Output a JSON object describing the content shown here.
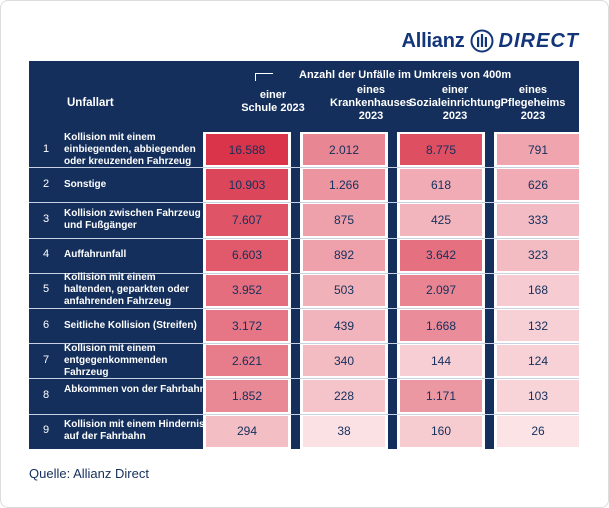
{
  "brand": {
    "word1": "Allianz",
    "word2": "DIRECT"
  },
  "source": "Quelle: Allianz Direct",
  "colors": {
    "panel": "#142f5c",
    "scale_low": "#fbe3e6",
    "scale_high": "#d9344a",
    "text_dark": "#142f5c"
  },
  "chart_data": {
    "type": "table",
    "title": "",
    "group_header": "Anzahl der Unfälle im Umkreis von 400m",
    "row_header": "Unfallart",
    "columns": [
      {
        "label": "einer\nSchule 2023",
        "line1": "einer",
        "line2": "Schule 2023",
        "line3": ""
      },
      {
        "label": "eines\nKrankenhauses\n2023",
        "line1": "eines",
        "line2": "Krankenhauses",
        "line3": "2023"
      },
      {
        "label": "einer\nSozialeinrichtung\n2023",
        "line1": "einer",
        "line2": "Sozialeinrichtung",
        "line3": "2023"
      },
      {
        "label": "eines\nPflegeheims\n2023",
        "line1": "eines",
        "line2": "Pflegeheims",
        "line3": "2023"
      }
    ],
    "rows": [
      {
        "rank": "1",
        "label": "Kollision mit einem einbiegenden, abbiegenden oder kreuzenden Fahrzeug",
        "values": [
          16588,
          2012,
          8775,
          791
        ],
        "display": [
          "16.588",
          "2.012",
          "8.775",
          "791"
        ]
      },
      {
        "rank": "2",
        "label": "Sonstige",
        "values": [
          10903,
          1266,
          618,
          626
        ],
        "display": [
          "10.903",
          "1.266",
          "618",
          "626"
        ]
      },
      {
        "rank": "3",
        "label": "Kollision zwischen Fahrzeug und Fußgänger",
        "values": [
          7607,
          875,
          425,
          333
        ],
        "display": [
          "7.607",
          "875",
          "425",
          "333"
        ]
      },
      {
        "rank": "4",
        "label": "Auffahrunfall",
        "values": [
          6603,
          892,
          3642,
          323
        ],
        "display": [
          "6.603",
          "892",
          "3.642",
          "323"
        ]
      },
      {
        "rank": "5",
        "label": "Kollision mit einem haltenden, geparkten oder anfahrenden Fahrzeug",
        "values": [
          3952,
          503,
          2097,
          168
        ],
        "display": [
          "3.952",
          "503",
          "2.097",
          "168"
        ]
      },
      {
        "rank": "6",
        "label": "Seitliche Kollision (Streifen)",
        "values": [
          3172,
          439,
          1668,
          132
        ],
        "display": [
          "3.172",
          "439",
          "1.668",
          "132"
        ]
      },
      {
        "rank": "7",
        "label": "Kollision mit einem entgegenkommenden Fahrzeug",
        "values": [
          2621,
          340,
          144,
          124
        ],
        "display": [
          "2.621",
          "340",
          "144",
          "124"
        ]
      },
      {
        "rank": "8",
        "label": "Abkommen von der Fahrbahn",
        "values": [
          1852,
          228,
          1171,
          103
        ],
        "display": [
          "1.852",
          "228",
          "1.171",
          "103"
        ]
      },
      {
        "rank": "9",
        "label": "Kollision mit einem Hindernis auf der Fahrbahn",
        "values": [
          294,
          38,
          160,
          26
        ],
        "display": [
          "294",
          "38",
          "160",
          "26"
        ]
      }
    ]
  }
}
